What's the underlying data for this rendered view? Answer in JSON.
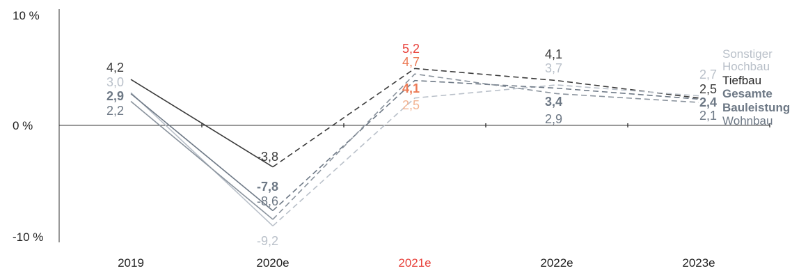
{
  "chart_data": {
    "type": "line",
    "x": [
      "2019",
      "2020e",
      "2021e",
      "2022e",
      "2023e"
    ],
    "x_label_colors": [
      "#222222",
      "#222222",
      "#e8413b",
      "#222222",
      "#222222"
    ],
    "y_ticks": [
      {
        "value": 10,
        "label": "10 %"
      },
      {
        "value": 0,
        "label": "0 %"
      },
      {
        "value": -10,
        "label": "-10 %"
      }
    ],
    "ylim": [
      -10,
      10
    ],
    "forecast_from_index": 1,
    "series": [
      {
        "key": "tiefbau",
        "values": [
          4.2,
          -3.8,
          5.2,
          4.1,
          2.5
        ],
        "color": "#3a3a3a"
      },
      {
        "key": "sonstiger",
        "values": [
          3.0,
          -9.2,
          2.5,
          3.7,
          2.7
        ],
        "color": "#b9c0c9"
      },
      {
        "key": "gesamt",
        "values": [
          2.9,
          -7.8,
          4.1,
          3.4,
          2.4
        ],
        "color": "#6d7885"
      },
      {
        "key": "wohnbau",
        "values": [
          2.2,
          -8.6,
          4.7,
          2.9,
          2.1
        ],
        "color": "#8a939d"
      }
    ],
    "data_labels": [
      {
        "text": "4,2",
        "color": "#3a3a3a",
        "bold": false
      },
      {
        "text": "3,0",
        "color": "#b9c0c9",
        "bold": false
      },
      {
        "text": "2,9",
        "color": "#6d7885",
        "bold": true
      },
      {
        "text": "2,2",
        "color": "#6d7885",
        "bold": false
      },
      {
        "text": "-3,8",
        "color": "#3a3a3a",
        "bold": false
      },
      {
        "text": "-7,8",
        "color": "#6d7885",
        "bold": true
      },
      {
        "text": "-8,6",
        "color": "#6d7885",
        "bold": false
      },
      {
        "text": "-9,2",
        "color": "#b9c0c9",
        "bold": false
      },
      {
        "text": "5,2",
        "color": "#e8413b",
        "bold": false
      },
      {
        "text": "4,7",
        "color": "#ec7a55",
        "bold": false
      },
      {
        "text": "4,1",
        "color": "#ec7a55",
        "bold": true
      },
      {
        "text": "2,5",
        "color": "#f3b493",
        "bold": false
      },
      {
        "text": "4,1",
        "color": "#3a3a3a",
        "bold": false
      },
      {
        "text": "3,7",
        "color": "#b9c0c9",
        "bold": false
      },
      {
        "text": "3,4",
        "color": "#6d7885",
        "bold": true
      },
      {
        "text": "2,9",
        "color": "#6d7885",
        "bold": false
      },
      {
        "text": "2,7",
        "color": "#b9c0c9",
        "bold": false
      },
      {
        "text": "2,5",
        "color": "#3a3a3a",
        "bold": false
      },
      {
        "text": "2,4",
        "color": "#6d7885",
        "bold": true
      },
      {
        "text": "2,1",
        "color": "#6d7885",
        "bold": false
      }
    ],
    "legend_labels": [
      {
        "text": "Sonstiger",
        "color": "#b9c0c9",
        "bold": false
      },
      {
        "text": "Hochbau",
        "color": "#b9c0c9",
        "bold": false
      },
      {
        "text": "Tiefbau",
        "color": "#222222",
        "bold": false
      },
      {
        "text": "Gesamte",
        "color": "#6d7885",
        "bold": true
      },
      {
        "text": "Bauleistung",
        "color": "#6d7885",
        "bold": true
      },
      {
        "text": "Wohnbau",
        "color": "#6d7885",
        "bold": false
      }
    ]
  }
}
